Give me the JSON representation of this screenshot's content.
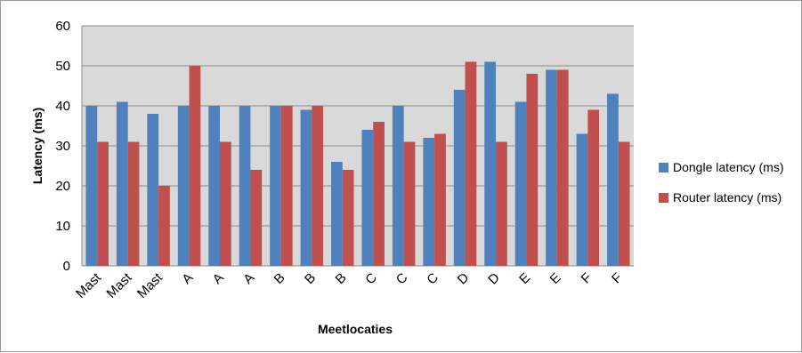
{
  "chart_data": {
    "type": "bar",
    "categories": [
      "Mast",
      "Mast",
      "Mast",
      "A",
      "A",
      "A",
      "B",
      "B",
      "B",
      "C",
      "C",
      "C",
      "D",
      "D",
      "E",
      "E",
      "F",
      "F"
    ],
    "series": [
      {
        "name": "Dongle latency (ms)",
        "color": "#4f81bd",
        "values": [
          40,
          41,
          38,
          40,
          40,
          40,
          40,
          39,
          26,
          34,
          40,
          32,
          44,
          51,
          41,
          49,
          33,
          43
        ]
      },
      {
        "name": "Router latency (ms)",
        "color": "#c0504d",
        "values": [
          31,
          31,
          20,
          50,
          31,
          24,
          40,
          40,
          24,
          36,
          31,
          33,
          51,
          31,
          48,
          49,
          39,
          31
        ]
      }
    ],
    "xlabel": "Meetlocaties",
    "ylabel": "Latency (ms)",
    "ylim": [
      0,
      60
    ],
    "yticks": [
      0,
      10,
      20,
      30,
      40,
      50,
      60
    ],
    "grid": true,
    "plot_background": "#d9d9d9",
    "legend_position": "right"
  }
}
